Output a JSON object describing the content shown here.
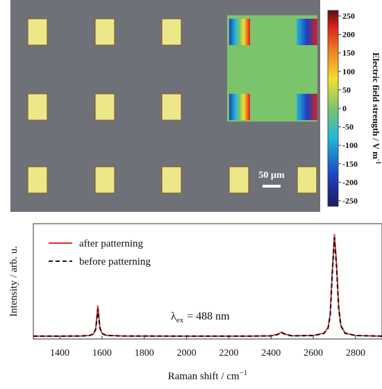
{
  "chart_data": [
    {
      "type": "image",
      "scale_bar": "50 µm",
      "colorbar": {
        "label": "Electric field strength / V m",
        "label_superscript": "-1",
        "clim": [
          -265,
          265
        ],
        "ticks": [
          250,
          200,
          150,
          100,
          50,
          0,
          -50,
          -100,
          -150,
          -200,
          -250
        ]
      }
    },
    {
      "type": "line",
      "xlabel": "Raman shift / cm",
      "xlabel_superscript": "−1",
      "ylabel": "Intensity / arb. u.",
      "annotation": {
        "symbol": "λ",
        "subscript": "ex",
        "text": "= 488 nm"
      },
      "xlim": [
        1275,
        2925
      ],
      "xticks": [
        1400,
        1600,
        1800,
        2000,
        2200,
        2400,
        2600,
        2800
      ],
      "ylim": [
        0,
        1
      ],
      "legend": "upper left",
      "x": [
        1275,
        1400,
        1500,
        1540,
        1560,
        1570,
        1575,
        1580,
        1585,
        1590,
        1600,
        1620,
        1700,
        2000,
        2300,
        2400,
        2430,
        2450,
        2470,
        2500,
        2600,
        2650,
        2670,
        2680,
        2690,
        2700,
        2710,
        2720,
        2730,
        2750,
        2800,
        2925
      ],
      "series": [
        {
          "name": "after patterning",
          "color": "#e8262b",
          "dash": false,
          "values": [
            0.025,
            0.025,
            0.026,
            0.03,
            0.045,
            0.09,
            0.18,
            0.29,
            0.2,
            0.1,
            0.05,
            0.032,
            0.026,
            0.025,
            0.025,
            0.028,
            0.04,
            0.06,
            0.04,
            0.028,
            0.03,
            0.05,
            0.1,
            0.22,
            0.6,
            0.91,
            0.65,
            0.28,
            0.12,
            0.05,
            0.03,
            0.025
          ]
        },
        {
          "name": "before patterning",
          "color": "#1a1a1a",
          "dash": true,
          "values": [
            0.025,
            0.025,
            0.026,
            0.03,
            0.044,
            0.085,
            0.165,
            0.26,
            0.18,
            0.095,
            0.048,
            0.031,
            0.026,
            0.025,
            0.025,
            0.027,
            0.038,
            0.055,
            0.038,
            0.027,
            0.03,
            0.048,
            0.095,
            0.21,
            0.58,
            0.88,
            0.62,
            0.27,
            0.115,
            0.05,
            0.03,
            0.025
          ]
        }
      ]
    }
  ]
}
